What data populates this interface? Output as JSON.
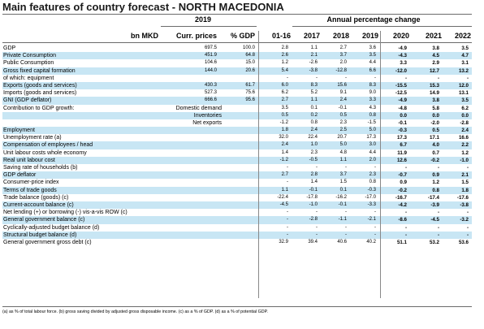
{
  "title": "Main features of country forecast - NORTH MACEDONIA",
  "groups": {
    "base_year": "2019",
    "annual": "Annual percentage change"
  },
  "headers": {
    "unit": "bn MKD",
    "curr": "Curr. prices",
    "pct": "% GDP",
    "avg": "01-16",
    "years": [
      "2017",
      "2018",
      "2019",
      "2020",
      "2021",
      "2022"
    ]
  },
  "rows": [
    {
      "label": "GDP",
      "curr": "697.5",
      "pct": "100.0",
      "avg": "2.8",
      "y": [
        "1.1",
        "2.7",
        "3.6",
        "-4.9",
        "3.8",
        "3.5"
      ],
      "shade": false,
      "sub": false
    },
    {
      "label": "Private Consumption",
      "curr": "451.9",
      "pct": "64.8",
      "avg": "2.6",
      "y": [
        "2.1",
        "3.7",
        "3.5",
        "-4.3",
        "4.5",
        "4.7"
      ],
      "shade": true,
      "sub": false
    },
    {
      "label": "Public Consumption",
      "curr": "104.6",
      "pct": "15.0",
      "avg": "1.2",
      "y": [
        "-2.6",
        "2.0",
        "4.4",
        "3.3",
        "2.9",
        "3.1"
      ],
      "shade": false,
      "sub": false
    },
    {
      "label": "Gross fixed capital formation",
      "curr": "144.0",
      "pct": "20.6",
      "avg": "5.4",
      "y": [
        "-3.8",
        "-12.8",
        "6.6",
        "-12.0",
        "12.7",
        "13.2"
      ],
      "shade": true,
      "sub": false
    },
    {
      "label": "of which: equipment",
      "curr": "",
      "pct": "",
      "avg": "-",
      "y": [
        "-",
        "-",
        "-",
        "-",
        "-",
        "-"
      ],
      "shade": false,
      "sub": false
    },
    {
      "label": "Exports (goods and services)",
      "curr": "430.3",
      "pct": "61.7",
      "avg": "6.0",
      "y": [
        "8.3",
        "15.6",
        "8.3",
        "-15.5",
        "15.3",
        "12.0"
      ],
      "shade": true,
      "sub": false
    },
    {
      "label": "Imports (goods and services)",
      "curr": "527.3",
      "pct": "75.6",
      "avg": "6.2",
      "y": [
        "5.2",
        "9.1",
        "9.0",
        "-12.5",
        "14.9",
        "13.1"
      ],
      "shade": false,
      "sub": false
    },
    {
      "label": "GNI (GDP deflator)",
      "curr": "666.6",
      "pct": "95.6",
      "avg": "2.7",
      "y": [
        "1.1",
        "2.4",
        "3.3",
        "-4.9",
        "3.8",
        "3.5"
      ],
      "shade": true,
      "sub": false
    },
    {
      "label": "Contribution to GDP growth:",
      "sublabel": "Domestic demand",
      "curr": "",
      "pct": "",
      "avg": "3.5",
      "y": [
        "0.1",
        "-0.1",
        "4.3",
        "-4.8",
        "5.8",
        "6.2"
      ],
      "shade": false,
      "sub": true
    },
    {
      "label": "",
      "sublabel": "Inventories",
      "curr": "",
      "pct": "",
      "avg": "0.5",
      "y": [
        "0.2",
        "0.5",
        "0.8",
        "0.0",
        "0.0",
        "0.0"
      ],
      "shade": true,
      "sub": true
    },
    {
      "label": "",
      "sublabel": "Net exports",
      "curr": "",
      "pct": "",
      "avg": "-1.2",
      "y": [
        "0.8",
        "2.3",
        "-1.5",
        "-0.1",
        "-2.0",
        "-2.8"
      ],
      "shade": false,
      "sub": true
    },
    {
      "label": "Employment",
      "curr": "",
      "pct": "",
      "avg": "1.8",
      "y": [
        "2.4",
        "2.5",
        "5.0",
        "-0.3",
        "0.5",
        "2.4"
      ],
      "shade": true,
      "sub": false
    },
    {
      "label": "Unemployment rate (a)",
      "curr": "",
      "pct": "",
      "avg": "32.0",
      "y": [
        "22.4",
        "20.7",
        "17.3",
        "17.3",
        "17.1",
        "16.6"
      ],
      "shade": false,
      "sub": false
    },
    {
      "label": "Compensation of employees / head",
      "curr": "",
      "pct": "",
      "avg": "2.4",
      "y": [
        "1.0",
        "5.0",
        "3.0",
        "6.7",
        "4.0",
        "2.2"
      ],
      "shade": true,
      "sub": false
    },
    {
      "label": "Unit labour costs whole economy",
      "curr": "",
      "pct": "",
      "avg": "1.4",
      "y": [
        "2.3",
        "4.8",
        "4.4",
        "11.9",
        "0.7",
        "1.2"
      ],
      "shade": false,
      "sub": false
    },
    {
      "label": "Real unit labour cost",
      "curr": "",
      "pct": "",
      "avg": "-1.2",
      "y": [
        "-0.5",
        "1.1",
        "2.0",
        "12.6",
        "-0.2",
        "-1.0"
      ],
      "shade": true,
      "sub": false
    },
    {
      "label": "Saving rate of households (b)",
      "curr": "",
      "pct": "",
      "avg": "-",
      "y": [
        "-",
        "-",
        "-",
        "-",
        "-",
        "-"
      ],
      "shade": false,
      "sub": false
    },
    {
      "label": "GDP deflator",
      "curr": "",
      "pct": "",
      "avg": "2.7",
      "y": [
        "2.8",
        "3.7",
        "2.3",
        "-0.7",
        "0.9",
        "2.1"
      ],
      "shade": true,
      "sub": false
    },
    {
      "label": "Consumer-price index",
      "curr": "",
      "pct": "",
      "avg": "-",
      "y": [
        "1.4",
        "1.5",
        "0.8",
        "0.9",
        "1.2",
        "1.5"
      ],
      "shade": false,
      "sub": false
    },
    {
      "label": "Terms of trade goods",
      "curr": "",
      "pct": "",
      "avg": "1.1",
      "y": [
        "-0.1",
        "0.1",
        "-0.3",
        "-0.2",
        "0.8",
        "1.8"
      ],
      "shade": true,
      "sub": false
    },
    {
      "label": "Trade balance (goods) (c)",
      "curr": "",
      "pct": "",
      "avg": "-22.4",
      "y": [
        "-17.8",
        "-16.2",
        "-17.0",
        "-16.7",
        "-17.4",
        "-17.6"
      ],
      "shade": false,
      "sub": false
    },
    {
      "label": "Current-account balance (c)",
      "curr": "",
      "pct": "",
      "avg": "-4.5",
      "y": [
        "-1.0",
        "-0.1",
        "-3.3",
        "-4.2",
        "-3.9",
        "-3.8"
      ],
      "shade": true,
      "sub": false
    },
    {
      "label": "Net lending (+) or borrowing (-) vis-a-vis ROW (c)",
      "curr": "",
      "pct": "",
      "avg": "-",
      "y": [
        "-",
        "-",
        "-",
        "-",
        "-",
        "-"
      ],
      "shade": false,
      "sub": false
    },
    {
      "label": "General government balance (c)",
      "curr": "",
      "pct": "",
      "avg": "-",
      "y": [
        "-2.8",
        "-1.1",
        "-2.1",
        "-8.6",
        "-4.5",
        "-3.2"
      ],
      "shade": true,
      "sub": false
    },
    {
      "label": "Cyclically-adjusted budget balance (d)",
      "curr": "",
      "pct": "",
      "avg": "-",
      "y": [
        "-",
        "-",
        "-",
        "-",
        "-",
        "-"
      ],
      "shade": false,
      "sub": false
    },
    {
      "label": "Structural budget balance (d)",
      "curr": "",
      "pct": "",
      "avg": "-",
      "y": [
        "-",
        "-",
        "-",
        "-",
        "-",
        "-"
      ],
      "shade": true,
      "sub": false
    },
    {
      "label": "General government gross debt (c)",
      "curr": "",
      "pct": "",
      "avg": "32.9",
      "y": [
        "39.4",
        "40.6",
        "40.2",
        "51.1",
        "53.2",
        "53.6"
      ],
      "shade": false,
      "sub": false
    }
  ],
  "footnote": "(a) as % of total labour force. (b) gross saving divided by adjusted gross disposable income. (c) as a % of GDP. (d) as a % of potential GDP.",
  "colors": {
    "row_shade": "#c8e6f4",
    "rule": "#6b6b6b",
    "title": "#1a1a1a"
  }
}
